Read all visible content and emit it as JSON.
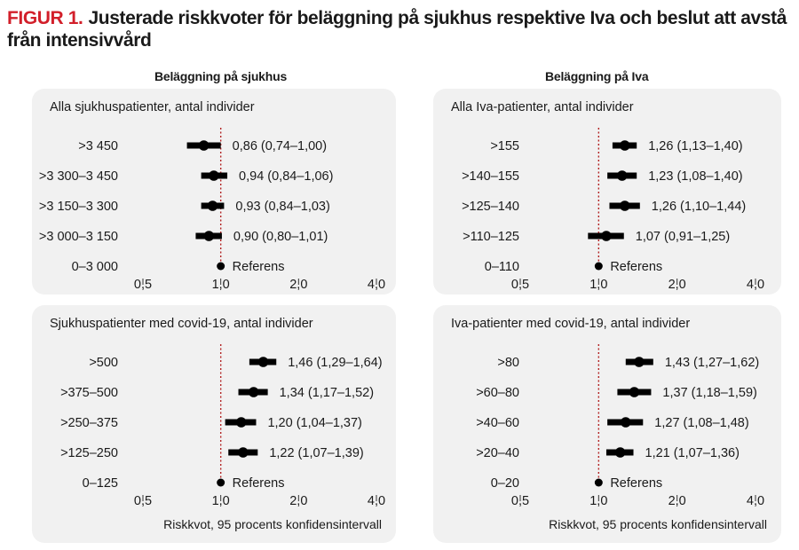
{
  "figure": {
    "label": "FIGUR 1.",
    "title": "Justerade riskkvoter för beläggning på sjukhus respektive Iva och beslut att avstå från intensivvård"
  },
  "columns": {
    "left": "Beläggning på sjukhus",
    "right": "Beläggning på Iva"
  },
  "colors": {
    "accent": "#d21f2a",
    "panel_background": "#f1f1f1",
    "marker": "#000000",
    "reference_line": "#b22222"
  },
  "chart_data": [
    {
      "type": "forest",
      "title": "Alla sjukhuspatienter, antal individer",
      "xlabel": "",
      "x_scale": "log",
      "xlim": [
        0.5,
        4.0
      ],
      "x_ticks": [
        "0,5",
        "1,0",
        "2,0",
        "4,0"
      ],
      "x_tick_values": [
        0.5,
        1.0,
        2.0,
        4.0
      ],
      "reference_value": 1.0,
      "rows": [
        {
          "label": ">3 450",
          "hr": 0.86,
          "lo": 0.74,
          "hi": 1.0,
          "text": "0,86 (0,74–1,00)"
        },
        {
          "label": ">3 300–3 450",
          "hr": 0.94,
          "lo": 0.84,
          "hi": 1.06,
          "text": "0,94 (0,84–1,06)"
        },
        {
          "label": ">3 150–3 300",
          "hr": 0.93,
          "lo": 0.84,
          "hi": 1.03,
          "text": "0,93 (0,84–1,03)"
        },
        {
          "label": ">3 000–3 150",
          "hr": 0.9,
          "lo": 0.8,
          "hi": 1.01,
          "text": "0,90 (0,80–1,01)"
        },
        {
          "label": "0–3 000",
          "hr": 1.0,
          "lo": 1.0,
          "hi": 1.0,
          "text": "Referens"
        }
      ]
    },
    {
      "type": "forest",
      "title": "Alla Iva-patienter, antal individer",
      "xlabel": "",
      "x_scale": "log",
      "xlim": [
        0.5,
        4.0
      ],
      "x_ticks": [
        "0,5",
        "1,0",
        "2,0",
        "4,0"
      ],
      "x_tick_values": [
        0.5,
        1.0,
        2.0,
        4.0
      ],
      "reference_value": 1.0,
      "rows": [
        {
          "label": ">155",
          "hr": 1.26,
          "lo": 1.13,
          "hi": 1.4,
          "text": "1,26 (1,13–1,40)"
        },
        {
          "label": ">140–155",
          "hr": 1.23,
          "lo": 1.08,
          "hi": 1.4,
          "text": "1,23 (1,08–1,40)"
        },
        {
          "label": ">125–140",
          "hr": 1.26,
          "lo": 1.1,
          "hi": 1.44,
          "text": "1,26 (1,10–1,44)"
        },
        {
          "label": ">110–125",
          "hr": 1.07,
          "lo": 0.91,
          "hi": 1.25,
          "text": "1,07 (0,91–1,25)"
        },
        {
          "label": "0–110",
          "hr": 1.0,
          "lo": 1.0,
          "hi": 1.0,
          "text": "Referens"
        }
      ]
    },
    {
      "type": "forest",
      "title": "Sjukhuspatienter med covid-19, antal individer",
      "xlabel": "Riskkvot, 95 procents konfidensintervall",
      "x_scale": "log",
      "xlim": [
        0.5,
        4.0
      ],
      "x_ticks": [
        "0,5",
        "1,0",
        "2,0",
        "4,0"
      ],
      "x_tick_values": [
        0.5,
        1.0,
        2.0,
        4.0
      ],
      "reference_value": 1.0,
      "rows": [
        {
          "label": ">500",
          "hr": 1.46,
          "lo": 1.29,
          "hi": 1.64,
          "text": "1,46 (1,29–1,64)"
        },
        {
          "label": ">375–500",
          "hr": 1.34,
          "lo": 1.17,
          "hi": 1.52,
          "text": "1,34 (1,17–1,52)"
        },
        {
          "label": ">250–375",
          "hr": 1.2,
          "lo": 1.04,
          "hi": 1.37,
          "text": "1,20 (1,04–1,37)"
        },
        {
          "label": ">125–250",
          "hr": 1.22,
          "lo": 1.07,
          "hi": 1.39,
          "text": "1,22 (1,07–1,39)"
        },
        {
          "label": "0–125",
          "hr": 1.0,
          "lo": 1.0,
          "hi": 1.0,
          "text": "Referens"
        }
      ]
    },
    {
      "type": "forest",
      "title": "Iva-patienter med covid-19, antal individer",
      "xlabel": "Riskkvot, 95 procents konfidensintervall",
      "x_scale": "log",
      "xlim": [
        0.5,
        4.0
      ],
      "x_ticks": [
        "0,5",
        "1,0",
        "2,0",
        "4,0"
      ],
      "x_tick_values": [
        0.5,
        1.0,
        2.0,
        4.0
      ],
      "reference_value": 1.0,
      "rows": [
        {
          "label": ">80",
          "hr": 1.43,
          "lo": 1.27,
          "hi": 1.62,
          "text": "1,43 (1,27–1,62)"
        },
        {
          "label": ">60–80",
          "hr": 1.37,
          "lo": 1.18,
          "hi": 1.59,
          "text": "1,37 (1,18–1,59)"
        },
        {
          "label": ">40–60",
          "hr": 1.27,
          "lo": 1.08,
          "hi": 1.48,
          "text": "1,27 (1,08–1,48)"
        },
        {
          "label": ">20–40",
          "hr": 1.21,
          "lo": 1.07,
          "hi": 1.36,
          "text": "1,21 (1,07–1,36)"
        },
        {
          "label": "0–20",
          "hr": 1.0,
          "lo": 1.0,
          "hi": 1.0,
          "text": "Referens"
        }
      ]
    }
  ]
}
